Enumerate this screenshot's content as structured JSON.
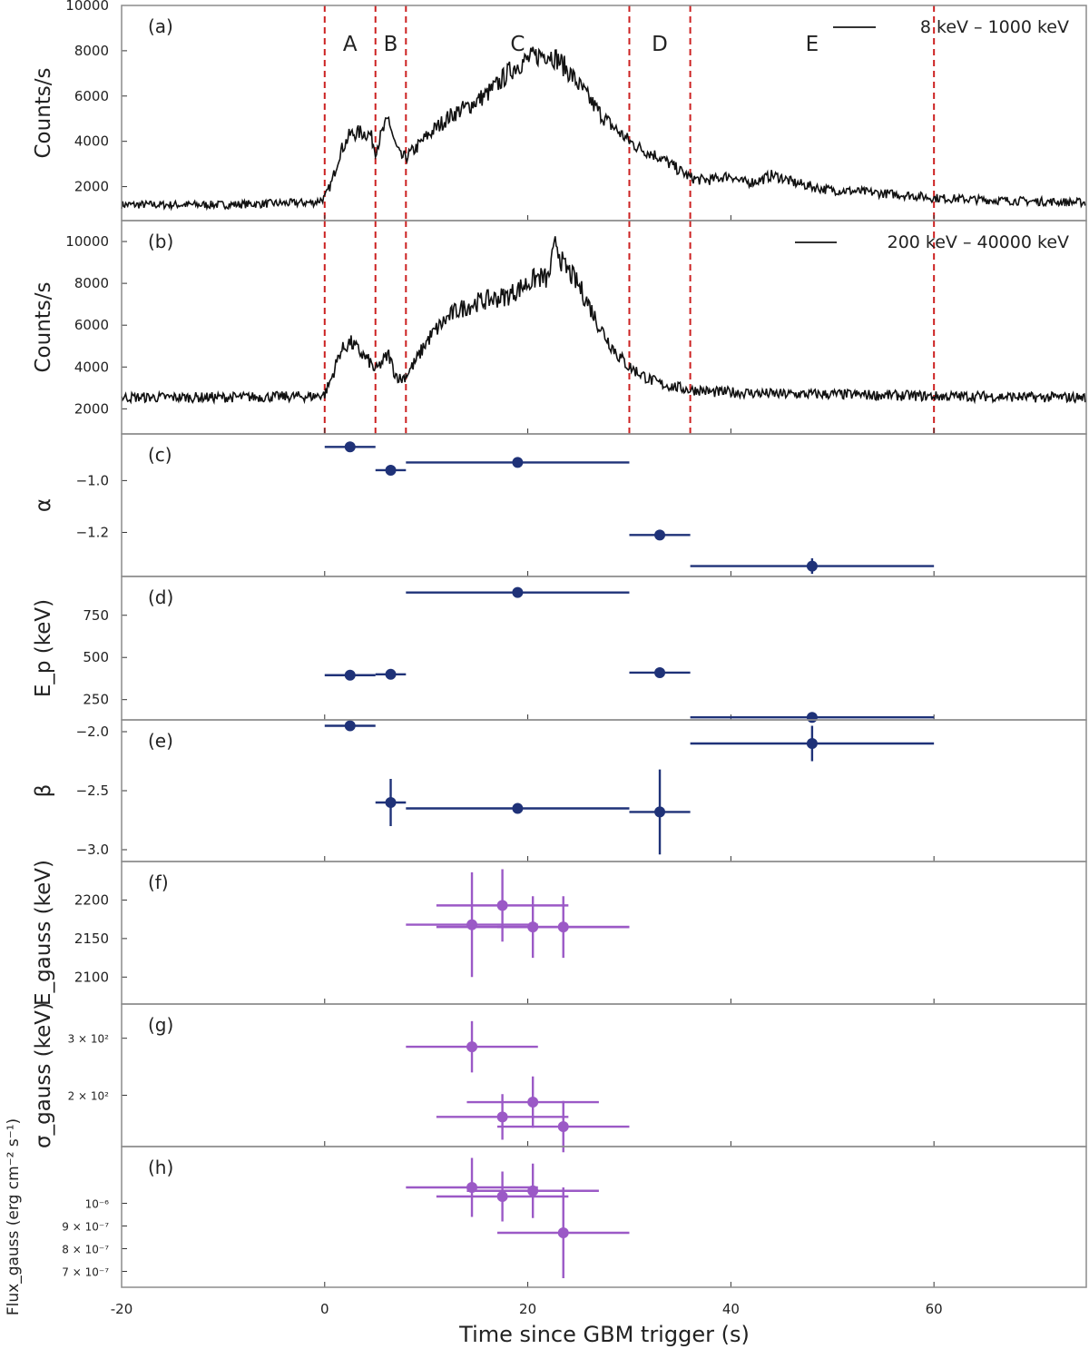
{
  "chart_data": {
    "type": "line",
    "xlabel": "Time since GBM trigger (s)",
    "xlim": [
      -20,
      75
    ],
    "xticks": [
      "-20",
      "0",
      "20",
      "40",
      "60"
    ],
    "interval_boundaries": [
      0,
      5,
      8,
      30,
      36,
      60
    ],
    "intervals": [
      "A",
      "B",
      "C",
      "D",
      "E"
    ],
    "colors": {
      "light_curve": "#111111",
      "band": "#1f3278",
      "gauss": "#9b59c6",
      "boundary": "#cc2222",
      "frame": "#8c8c8c"
    },
    "panels": [
      {
        "id": "a",
        "tag": "(a)",
        "type": "line",
        "ylabel": "Counts/s",
        "ylim": [
          500,
          10000
        ],
        "yticks": [
          "2000",
          "4000",
          "6000",
          "8000",
          "10000"
        ],
        "show_intervals": true,
        "series": [
          {
            "name": "8 keV – 1000 keV",
            "x": [
              -20,
              -10,
              -1,
              0,
              0.7,
              1.5,
              2.5,
              3.5,
              4.5,
              5,
              5.6,
              6.3,
              6.9,
              7.5,
              8,
              9,
              10,
              11,
              12,
              13,
              14,
              15,
              16,
              17,
              18,
              19,
              20,
              21,
              22,
              23,
              24,
              25,
              26,
              27,
              28,
              29,
              30,
              31,
              32,
              33,
              34,
              35,
              36,
              37,
              38,
              39,
              40,
              41,
              42,
              43,
              44,
              45,
              46,
              47,
              48,
              49,
              50,
              52,
              55,
              58,
              60,
              63,
              66,
              70,
              75
            ],
            "y": [
              1200,
              1200,
              1300,
              1500,
              2200,
              3500,
              4300,
              4400,
              4300,
              3600,
              4300,
              5000,
              3900,
              3300,
              3300,
              3700,
              4200,
              4600,
              5000,
              5300,
              5500,
              5800,
              6100,
              6500,
              7000,
              7400,
              7600,
              7800,
              7900,
              7600,
              7100,
              6500,
              5900,
              5300,
              4800,
              4400,
              4000,
              3700,
              3500,
              3300,
              3000,
              2700,
              2400,
              2300,
              2300,
              2400,
              2500,
              2200,
              2200,
              2300,
              2500,
              2400,
              2200,
              2100,
              2000,
              1900,
              1850,
              1800,
              1700,
              1600,
              1500,
              1450,
              1400,
              1350,
              1300
            ]
          }
        ]
      },
      {
        "id": "b",
        "tag": "(b)",
        "type": "line",
        "ylabel": "Counts/s",
        "ylim": [
          800,
          11000
        ],
        "yticks": [
          "2000",
          "4000",
          "6000",
          "8000",
          "10000"
        ],
        "show_intervals": true,
        "series": [
          {
            "name": "200 keV – 40000 keV",
            "x": [
              -20,
              -10,
              -1,
              0,
              0.7,
              1.5,
              2.5,
              3.5,
              4.5,
              5,
              5.6,
              6.3,
              6.9,
              7.5,
              8,
              9,
              10,
              11,
              12,
              13,
              14,
              15,
              16,
              17,
              18,
              19,
              20,
              21,
              22,
              22.8,
              23.5,
              24,
              25,
              26,
              27,
              28,
              29,
              30,
              31,
              32,
              33,
              34,
              35,
              36,
              37,
              38,
              40,
              45,
              50,
              55,
              60,
              65,
              70,
              75
            ],
            "y": [
              2550,
              2550,
              2600,
              2700,
              3500,
              4700,
              5200,
              4700,
              4200,
              3800,
              4200,
              4600,
              3700,
              3400,
              3600,
              4300,
              5200,
              5800,
              6300,
              6700,
              6900,
              7100,
              7200,
              7300,
              7400,
              7700,
              8000,
              8300,
              8200,
              10000,
              8800,
              8600,
              7900,
              7000,
              6000,
              5200,
              4500,
              4000,
              3700,
              3400,
              3200,
              3100,
              3000,
              2900,
              2900,
              2800,
              2800,
              2700,
              2700,
              2650,
              2600,
              2600,
              2550,
              2550
            ]
          }
        ]
      },
      {
        "id": "c",
        "tag": "(c)",
        "type": "errorbar",
        "ylabel": "α",
        "ylim": [
          -1.37,
          -0.82
        ],
        "yticks": [
          "−1.0",
          "−1.2"
        ],
        "ytick_values": [
          -1.0,
          -1.2
        ],
        "series": [
          {
            "name": "",
            "points": [
              {
                "x": 2.5,
                "xerr": 2.5,
                "y": -0.87,
                "yerr": 0.0
              },
              {
                "x": 6.5,
                "xerr": 1.5,
                "y": -0.96,
                "yerr": 0.0
              },
              {
                "x": 19,
                "xerr": 11,
                "y": -0.93,
                "yerr": 0.0
              },
              {
                "x": 33,
                "xerr": 3,
                "y": -1.21,
                "yerr": 0.0
              },
              {
                "x": 48,
                "xerr": 12,
                "y": -1.33,
                "yerr": 0.03
              }
            ]
          }
        ]
      },
      {
        "id": "d",
        "tag": "(d)",
        "type": "errorbar",
        "ylabel": "E_p (keV)",
        "ylim": [
          130,
          980
        ],
        "yticks": [
          "250",
          "500",
          "750"
        ],
        "ytick_values": [
          250,
          500,
          750
        ],
        "series": [
          {
            "name": "",
            "points": [
              {
                "x": 2.5,
                "xerr": 2.5,
                "y": 395,
                "yerr": 0
              },
              {
                "x": 6.5,
                "xerr": 1.5,
                "y": 400,
                "yerr": 0
              },
              {
                "x": 19,
                "xerr": 11,
                "y": 885,
                "yerr": 0
              },
              {
                "x": 33,
                "xerr": 3,
                "y": 410,
                "yerr": 0
              },
              {
                "x": 48,
                "xerr": 12,
                "y": 145,
                "yerr": 0
              }
            ]
          }
        ]
      },
      {
        "id": "e",
        "tag": "(e)",
        "type": "errorbar",
        "ylabel": "β",
        "ylim": [
          -3.1,
          -1.9
        ],
        "yticks": [
          "−2.0",
          "−2.5",
          "−3.0"
        ],
        "ytick_values": [
          -2.0,
          -2.5,
          -3.0
        ],
        "series": [
          {
            "name": "",
            "points": [
              {
                "x": 2.5,
                "xerr": 2.5,
                "y": -1.95,
                "yerr": 0.0
              },
              {
                "x": 6.5,
                "xerr": 1.5,
                "y": -2.6,
                "yerr": 0.2
              },
              {
                "x": 19,
                "xerr": 11,
                "y": -2.65,
                "yerr": 0.0
              },
              {
                "x": 33,
                "xerr": 3,
                "y": -2.68,
                "yerr": 0.36
              },
              {
                "x": 48,
                "xerr": 12,
                "y": -2.1,
                "yerr": 0.15
              }
            ]
          }
        ]
      },
      {
        "id": "f",
        "tag": "(f)",
        "type": "errorbar",
        "ylabel": "E_gauss (keV)",
        "ylim": [
          2065,
          2250
        ],
        "yticks": [
          "2100",
          "2150",
          "2200"
        ],
        "ytick_values": [
          2100,
          2150,
          2200
        ],
        "series": [
          {
            "name": "",
            "points": [
              {
                "x": 14.5,
                "xerr": 6.5,
                "y": 2168,
                "yerr": 68
              },
              {
                "x": 17.5,
                "xerr": 6.5,
                "y": 2193,
                "yerr": 47
              },
              {
                "x": 20.5,
                "xerr": 9.5,
                "y": 2165,
                "yerr": 40
              },
              {
                "x": 23.5,
                "xerr": 6.5,
                "y": 2165,
                "yerr": 40
              }
            ]
          }
        ]
      },
      {
        "id": "g",
        "tag": "(g)",
        "type": "errorbar",
        "ylabel": "σ_gauss (keV)",
        "ylim": [
          110,
          360
        ],
        "yticks": [
          "3 × 10²",
          "2 × 10²"
        ],
        "ytick_values": [
          300,
          200
        ],
        "series": [
          {
            "name": "",
            "points": [
              {
                "x": 14.5,
                "xerr": 6.5,
                "y": 285,
                "yerr": 45
              },
              {
                "x": 17.5,
                "xerr": 6.5,
                "y": 162,
                "yerr": 40
              },
              {
                "x": 20.5,
                "xerr": 6.5,
                "y": 188,
                "yerr": 45
              },
              {
                "x": 23.5,
                "xerr": 6.5,
                "y": 145,
                "yerr": 45
              }
            ]
          }
        ]
      },
      {
        "id": "h",
        "tag": "(h)",
        "type": "errorbar",
        "ylabel": "Flux_gauss (erg cm⁻² s⁻¹)",
        "ylim": [
          6.3e-07,
          1.25e-06
        ],
        "yticks": [
          "10⁻⁶",
          "9 × 10⁻⁷",
          "8 × 10⁻⁷",
          "7 × 10⁻⁷"
        ],
        "ytick_values": [
          1e-06,
          9e-07,
          8e-07,
          7e-07
        ],
        "series": [
          {
            "name": "",
            "points": [
              {
                "x": 14.5,
                "xerr": 6.5,
                "y": 1.07e-06,
                "yerr": 1.3e-07
              },
              {
                "x": 17.5,
                "xerr": 6.5,
                "y": 1.03e-06,
                "yerr": 1.1e-07
              },
              {
                "x": 20.5,
                "xerr": 6.5,
                "y": 1.055e-06,
                "yerr": 1.2e-07
              },
              {
                "x": 23.5,
                "xerr": 6.5,
                "y": 8.7e-07,
                "yerr": 2e-07
              }
            ]
          }
        ]
      }
    ]
  }
}
